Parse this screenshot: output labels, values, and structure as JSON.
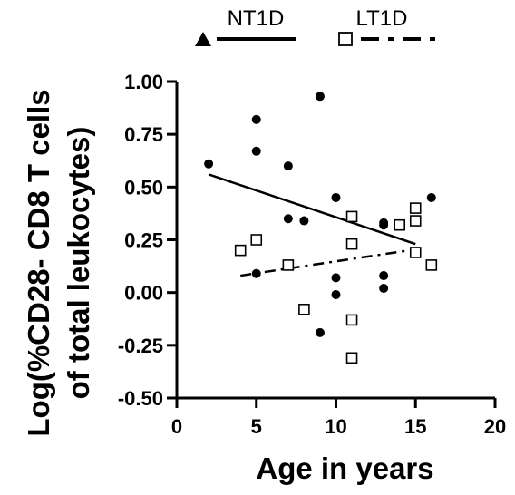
{
  "chart_data": {
    "type": "scatter",
    "title": "",
    "xlabel": "Age in years",
    "ylabel_lines": [
      "Log(%CD28- CD8 T cells",
      "of total leukocytes)"
    ],
    "xlim": [
      0,
      20
    ],
    "ylim": [
      -0.5,
      1.0
    ],
    "x_ticks": [
      0,
      5,
      10,
      15,
      20
    ],
    "x_tick_labels": [
      "0",
      "5",
      "10",
      "15",
      "20"
    ],
    "y_ticks": [
      -0.5,
      -0.25,
      0,
      0.25,
      0.5,
      0.75,
      1.0
    ],
    "y_tick_labels": [
      "-0.50",
      "-0.25",
      "0.00",
      "0.25",
      "0.50",
      "0.75",
      "1.00"
    ],
    "grid": false,
    "legend_position": "top",
    "series": [
      {
        "name": "NT1D",
        "marker": "filled-circle",
        "legend_marker": "filled-triangle",
        "line_style": "solid",
        "color": "#000000",
        "points": [
          [
            2,
            0.61
          ],
          [
            5,
            0.82
          ],
          [
            5,
            0.67
          ],
          [
            5,
            0.09
          ],
          [
            7,
            0.6
          ],
          [
            7,
            0.35
          ],
          [
            8,
            0.34
          ],
          [
            9,
            0.93
          ],
          [
            9,
            -0.19
          ],
          [
            10,
            0.45
          ],
          [
            10,
            0.07
          ],
          [
            10,
            -0.01
          ],
          [
            13,
            0.33
          ],
          [
            13,
            0.32
          ],
          [
            13,
            0.08
          ],
          [
            13,
            0.02
          ],
          [
            16,
            0.45
          ]
        ],
        "fit_line": [
          [
            2,
            0.56
          ],
          [
            15,
            0.23
          ]
        ]
      },
      {
        "name": "LT1D",
        "marker": "open-square",
        "legend_marker": "open-square",
        "line_style": "dash-dot",
        "color": "#000000",
        "points": [
          [
            4,
            0.2
          ],
          [
            5,
            0.25
          ],
          [
            7,
            0.13
          ],
          [
            8,
            -0.08
          ],
          [
            11,
            0.36
          ],
          [
            11,
            0.23
          ],
          [
            11,
            -0.13
          ],
          [
            11,
            -0.31
          ],
          [
            14,
            0.32
          ],
          [
            15,
            0.4
          ],
          [
            15,
            0.34
          ],
          [
            15,
            0.19
          ],
          [
            16,
            0.13
          ]
        ],
        "fit_line": [
          [
            4,
            0.08
          ],
          [
            15.5,
            0.21
          ]
        ]
      }
    ]
  }
}
